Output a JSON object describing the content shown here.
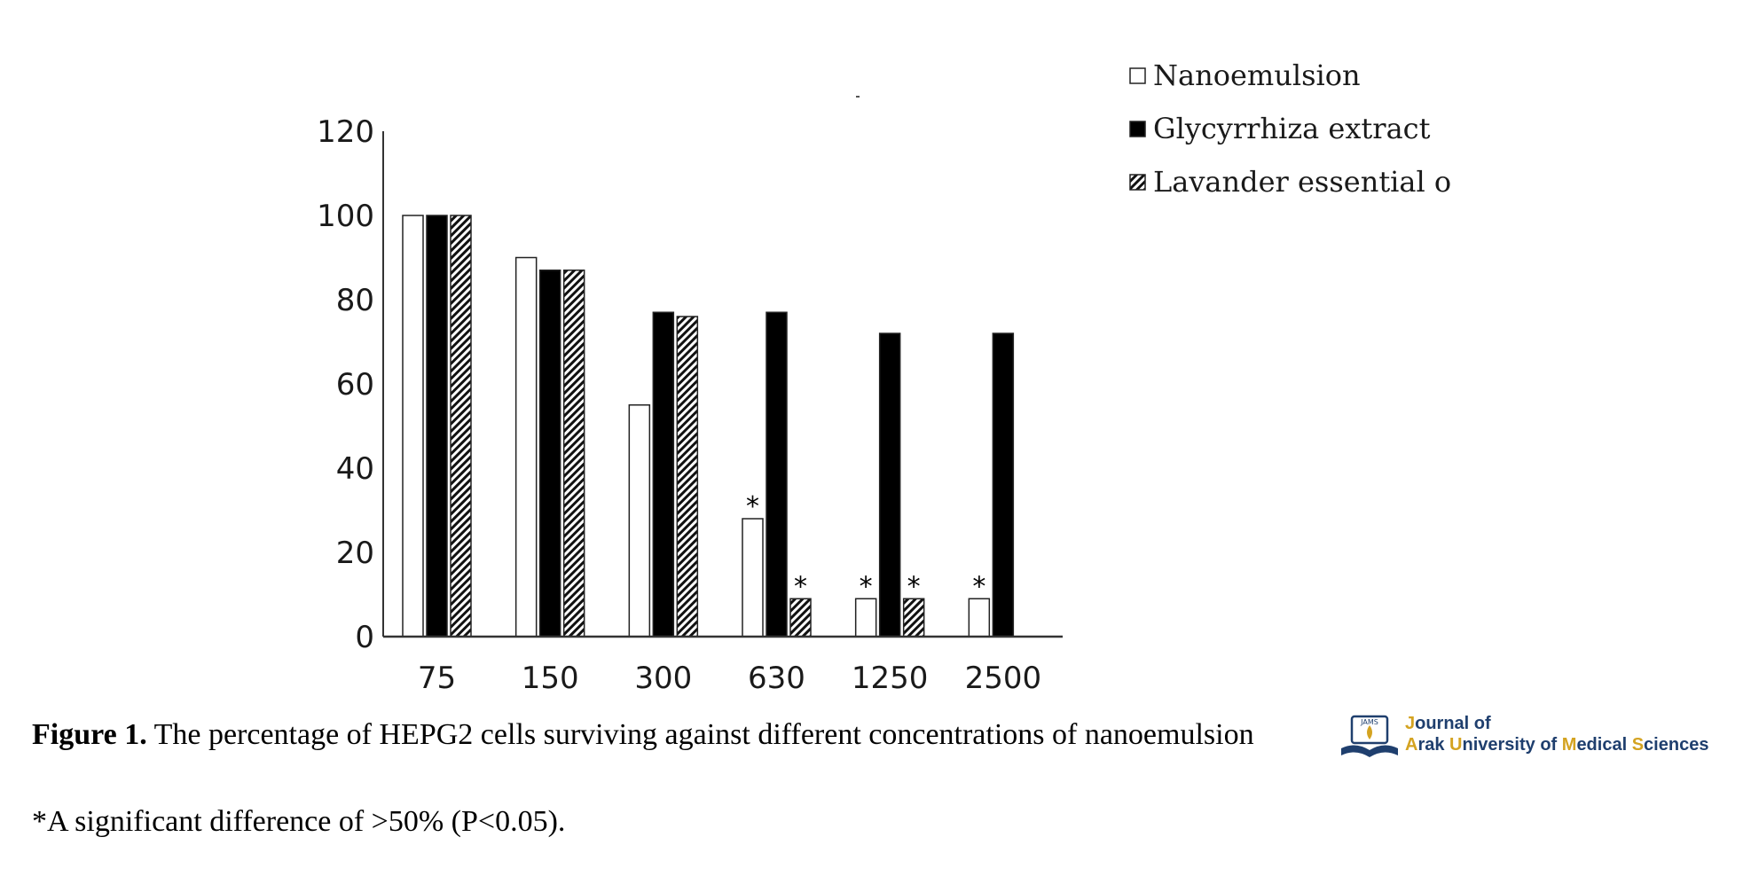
{
  "chart_data": {
    "type": "bar",
    "categories": [
      "75",
      "150",
      "300",
      "630",
      "1250",
      "2500"
    ],
    "series": [
      {
        "name": "Nanoemulsion",
        "values": [
          100,
          90,
          55,
          28,
          9,
          9
        ],
        "pattern": "white"
      },
      {
        "name": "Glycyrrhiza extract",
        "values": [
          100,
          87,
          77,
          77,
          72,
          72
        ],
        "pattern": "black"
      },
      {
        "name": "Lavander essential o",
        "values": [
          100,
          87,
          76,
          9,
          9,
          0
        ],
        "pattern": "hatched"
      }
    ],
    "significant": [
      {
        "series": 0,
        "category": "630"
      },
      {
        "series": 2,
        "category": "630"
      },
      {
        "series": 0,
        "category": "1250"
      },
      {
        "series": 2,
        "category": "1250"
      },
      {
        "series": 0,
        "category": "2500"
      }
    ],
    "significant_marker": "*",
    "ylim": [
      0,
      120
    ],
    "yticks": [
      0,
      20,
      40,
      60,
      80,
      100,
      120
    ],
    "xlabel": "",
    "ylabel": "",
    "grid": false,
    "legend_position": "top-right"
  },
  "caption": {
    "label": "Figure 1.",
    "text": " The percentage of HEPG2 cells surviving against different concentrations of nanoemulsion"
  },
  "note": "*A significant difference of >50% (P<0.05).",
  "logo": {
    "line1_accent": "J",
    "line1_rest": "ournal of",
    "line2": [
      {
        "t": "A",
        "accent": true
      },
      {
        "t": "rak ",
        "accent": false
      },
      {
        "t": "U",
        "accent": true
      },
      {
        "t": "niversity of ",
        "accent": false
      },
      {
        "t": "M",
        "accent": true
      },
      {
        "t": "edical ",
        "accent": false
      },
      {
        "t": "S",
        "accent": true
      },
      {
        "t": "ciences",
        "accent": false
      }
    ],
    "badge": "JAMS",
    "accent_color": "#d4a321",
    "brand_color": "#1f3f6e"
  }
}
